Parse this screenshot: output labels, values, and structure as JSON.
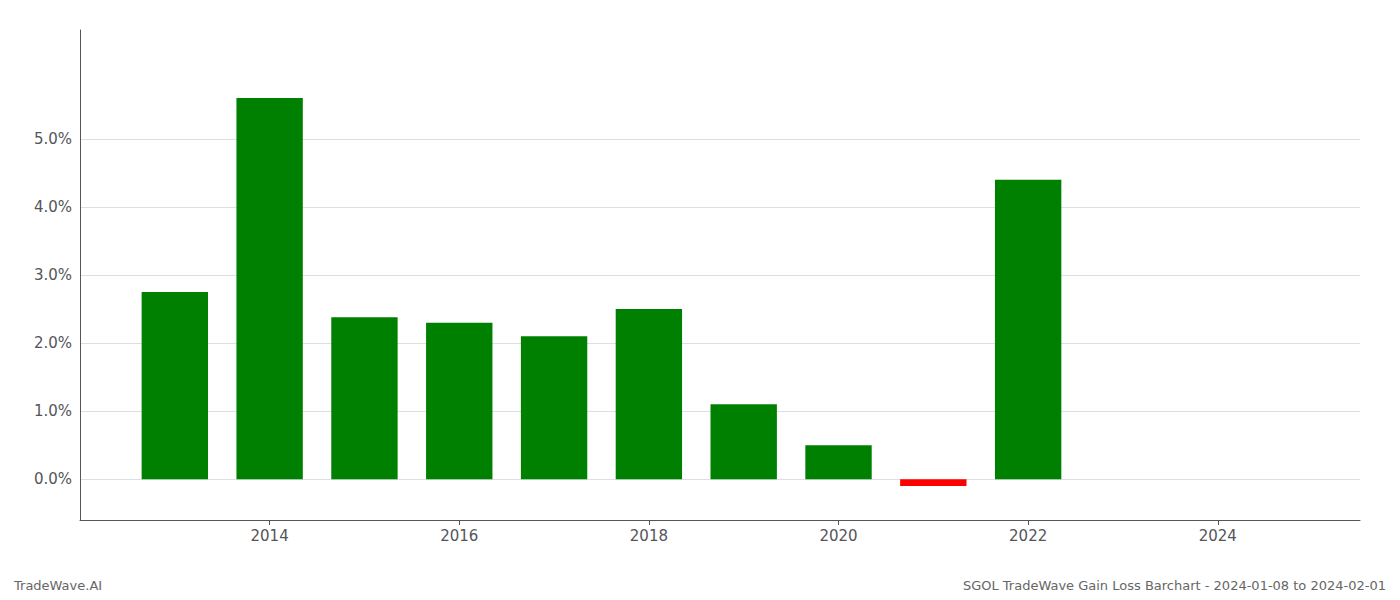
{
  "chart_data": {
    "type": "bar",
    "x": [
      2013,
      2014,
      2015,
      2016,
      2017,
      2018,
      2019,
      2020,
      2021,
      2022
    ],
    "values": [
      0.0275,
      0.056,
      0.0238,
      0.023,
      0.021,
      0.025,
      0.011,
      0.005,
      -0.001,
      0.044
    ],
    "colors": [
      "#008000",
      "#008000",
      "#008000",
      "#008000",
      "#008000",
      "#008000",
      "#008000",
      "#008000",
      "#ff0000",
      "#008000"
    ],
    "xlim": [
      2012.0,
      2025.5
    ],
    "xticks": [
      2014,
      2016,
      2018,
      2020,
      2022,
      2024
    ],
    "ylim": [
      -0.006,
      0.066
    ],
    "yticks": [
      {
        "value": 0.0,
        "label": "0.0%"
      },
      {
        "value": 0.01,
        "label": "1.0%"
      },
      {
        "value": 0.02,
        "label": "2.0%"
      },
      {
        "value": 0.03,
        "label": "3.0%"
      },
      {
        "value": 0.04,
        "label": "4.0%"
      },
      {
        "value": 0.05,
        "label": "5.0%"
      }
    ],
    "grid": true,
    "annotations": [
      "TradeWave.AI",
      "SGOL TradeWave Gain Loss Barchart - 2024-01-08 to 2024-02-01"
    ]
  }
}
